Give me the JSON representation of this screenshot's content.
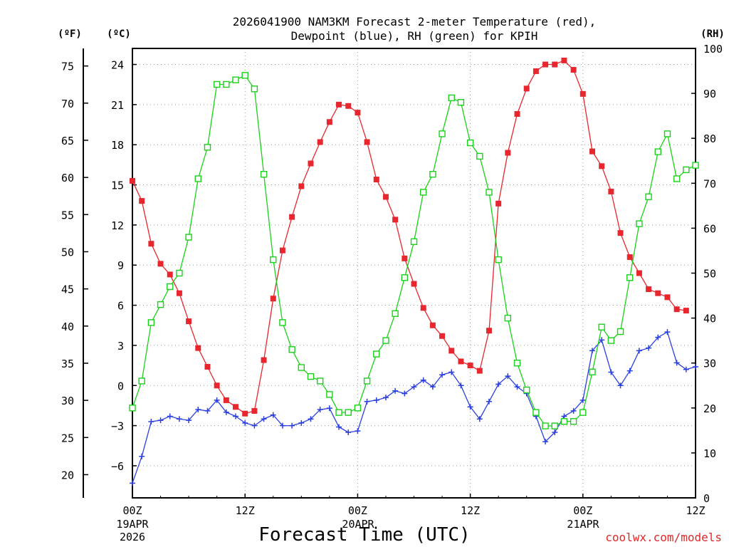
{
  "title": {
    "line1": "2026041900 NAM3KM Forecast 2-meter Temperature (red),",
    "line2": "Dewpoint (blue), RH (green) for KPIH"
  },
  "units": {
    "fahrenheit": "(ºF)",
    "celsius": "(ºC)",
    "rh": "(RH)"
  },
  "x_ticks": [
    "00Z",
    "12Z",
    "00Z",
    "12Z",
    "00Z",
    "12Z"
  ],
  "x_dates": [
    {
      "day": "19APR",
      "year": "2026"
    },
    {
      "day": "20APR",
      "year": ""
    },
    {
      "day": "21APR",
      "year": ""
    }
  ],
  "x_title": "Forecast Time (UTC)",
  "credit": "coolwx.com/models",
  "colors": {
    "temperature": "#e8262e",
    "dewpoint": "#2a3fe0",
    "rh": "#19d219",
    "credit": "#e0282a"
  },
  "chart_data": {
    "type": "line",
    "x_unit": "forecast hour (UTC, 0 = 00Z 19APR)",
    "xlim": [
      0,
      60
    ],
    "celsius_ticks": [
      "24",
      "21",
      "18",
      "15",
      "12",
      "9",
      "6",
      "3",
      "0",
      "−3",
      "−6"
    ],
    "fahrenheit_ticks": [
      "75",
      "70",
      "65",
      "60",
      "55",
      "50",
      "45",
      "40",
      "35",
      "30",
      "25",
      "20"
    ],
    "rh_ticks": [
      "100",
      "90",
      "80",
      "70",
      "60",
      "50",
      "40",
      "30",
      "20",
      "10",
      "0"
    ],
    "ylim_celsius": [
      -8.4,
      25.2
    ],
    "ylim_rh": [
      0,
      100
    ],
    "series": [
      {
        "name": "2-meter Temperature",
        "axis": "celsius",
        "color": "red",
        "marker": "filled-square",
        "points": [
          [
            0,
            15.3
          ],
          [
            1,
            13.8
          ],
          [
            2,
            10.6
          ],
          [
            3,
            9.1
          ],
          [
            4,
            8.3
          ],
          [
            5,
            6.9
          ],
          [
            6,
            4.8
          ],
          [
            7,
            2.8
          ],
          [
            8,
            1.4
          ],
          [
            9,
            0.0
          ],
          [
            10,
            -1.1
          ],
          [
            11,
            -1.6
          ],
          [
            12,
            -2.1
          ],
          [
            13,
            -1.9
          ],
          [
            14,
            1.9
          ],
          [
            15,
            6.5
          ],
          [
            16,
            10.1
          ],
          [
            17,
            12.6
          ],
          [
            18,
            14.9
          ],
          [
            19,
            16.6
          ],
          [
            20,
            18.2
          ],
          [
            21,
            19.7
          ],
          [
            22,
            21.0
          ],
          [
            23,
            20.9
          ],
          [
            24,
            20.4
          ],
          [
            25,
            18.2
          ],
          [
            26,
            15.4
          ],
          [
            27,
            14.1
          ],
          [
            28,
            12.4
          ],
          [
            29,
            9.5
          ],
          [
            30,
            7.6
          ],
          [
            31,
            5.8
          ],
          [
            32,
            4.5
          ],
          [
            33,
            3.7
          ],
          [
            34,
            2.6
          ],
          [
            35,
            1.8
          ],
          [
            36,
            1.5
          ],
          [
            37,
            1.1
          ],
          [
            38,
            4.1
          ],
          [
            39,
            13.6
          ],
          [
            40,
            17.4
          ],
          [
            41,
            20.3
          ],
          [
            42,
            22.2
          ],
          [
            43,
            23.5
          ],
          [
            44,
            24.0
          ],
          [
            45,
            24.0
          ],
          [
            46,
            24.3
          ],
          [
            47,
            23.6
          ],
          [
            48,
            21.8
          ],
          [
            49,
            17.5
          ],
          [
            50,
            16.4
          ],
          [
            51,
            14.5
          ],
          [
            52,
            11.4
          ],
          [
            53,
            9.6
          ],
          [
            54,
            8.4
          ],
          [
            55,
            7.2
          ],
          [
            56,
            6.9
          ],
          [
            57,
            6.6
          ],
          [
            58,
            5.7
          ],
          [
            59,
            5.6
          ]
        ]
      },
      {
        "name": "Dewpoint",
        "axis": "celsius",
        "color": "blue",
        "marker": "plus",
        "points": [
          [
            0,
            -7.3
          ],
          [
            1,
            -5.3
          ],
          [
            2,
            -2.7
          ],
          [
            3,
            -2.6
          ],
          [
            4,
            -2.3
          ],
          [
            5,
            -2.5
          ],
          [
            6,
            -2.6
          ],
          [
            7,
            -1.8
          ],
          [
            8,
            -1.9
          ],
          [
            9,
            -1.1
          ],
          [
            10,
            -2.0
          ],
          [
            11,
            -2.3
          ],
          [
            12,
            -2.8
          ],
          [
            13,
            -3.0
          ],
          [
            14,
            -2.5
          ],
          [
            15,
            -2.2
          ],
          [
            16,
            -3.0
          ],
          [
            17,
            -3.0
          ],
          [
            18,
            -2.8
          ],
          [
            19,
            -2.5
          ],
          [
            20,
            -1.8
          ],
          [
            21,
            -1.7
          ],
          [
            22,
            -3.1
          ],
          [
            23,
            -3.5
          ],
          [
            24,
            -3.4
          ],
          [
            25,
            -1.2
          ],
          [
            26,
            -1.1
          ],
          [
            27,
            -0.9
          ],
          [
            28,
            -0.4
          ],
          [
            29,
            -0.6
          ],
          [
            30,
            -0.1
          ],
          [
            31,
            0.4
          ],
          [
            32,
            -0.1
          ],
          [
            33,
            0.8
          ],
          [
            34,
            1.0
          ],
          [
            35,
            0.0
          ],
          [
            36,
            -1.6
          ],
          [
            37,
            -2.5
          ],
          [
            38,
            -1.2
          ],
          [
            39,
            0.1
          ],
          [
            40,
            0.7
          ],
          [
            41,
            -0.1
          ],
          [
            42,
            -0.6
          ],
          [
            43,
            -2.3
          ],
          [
            44,
            -4.2
          ],
          [
            45,
            -3.5
          ],
          [
            46,
            -2.3
          ],
          [
            47,
            -1.9
          ],
          [
            48,
            -1.1
          ],
          [
            49,
            2.6
          ],
          [
            50,
            3.4
          ],
          [
            51,
            1.0
          ],
          [
            52,
            0.0
          ],
          [
            53,
            1.1
          ],
          [
            54,
            2.6
          ],
          [
            55,
            2.8
          ],
          [
            56,
            3.6
          ],
          [
            57,
            4.0
          ],
          [
            58,
            1.7
          ],
          [
            59,
            1.2
          ],
          [
            60,
            1.4
          ]
        ]
      },
      {
        "name": "RH",
        "axis": "rh",
        "color": "green",
        "marker": "open-square",
        "points": [
          [
            0,
            20
          ],
          [
            1,
            26
          ],
          [
            2,
            39
          ],
          [
            3,
            43
          ],
          [
            4,
            47
          ],
          [
            5,
            50
          ],
          [
            6,
            58
          ],
          [
            7,
            71
          ],
          [
            8,
            78
          ],
          [
            9,
            92
          ],
          [
            10,
            92
          ],
          [
            11,
            93
          ],
          [
            12,
            94
          ],
          [
            13,
            91
          ],
          [
            14,
            72
          ],
          [
            15,
            53
          ],
          [
            16,
            39
          ],
          [
            17,
            33
          ],
          [
            18,
            29
          ],
          [
            19,
            27
          ],
          [
            20,
            26
          ],
          [
            21,
            23
          ],
          [
            22,
            19
          ],
          [
            23,
            19
          ],
          [
            24,
            20
          ],
          [
            25,
            26
          ],
          [
            26,
            32
          ],
          [
            27,
            35
          ],
          [
            28,
            41
          ],
          [
            29,
            49
          ],
          [
            30,
            57
          ],
          [
            31,
            68
          ],
          [
            32,
            72
          ],
          [
            33,
            81
          ],
          [
            34,
            89
          ],
          [
            35,
            88
          ],
          [
            36,
            79
          ],
          [
            37,
            76
          ],
          [
            38,
            68
          ],
          [
            39,
            53
          ],
          [
            40,
            40
          ],
          [
            41,
            30
          ],
          [
            42,
            24
          ],
          [
            43,
            19
          ],
          [
            44,
            16
          ],
          [
            45,
            16
          ],
          [
            46,
            17
          ],
          [
            47,
            17
          ],
          [
            48,
            19
          ],
          [
            49,
            28
          ],
          [
            50,
            38
          ],
          [
            51,
            35
          ],
          [
            52,
            37
          ],
          [
            53,
            49
          ],
          [
            54,
            61
          ],
          [
            55,
            67
          ],
          [
            56,
            77
          ],
          [
            57,
            81
          ],
          [
            58,
            71
          ],
          [
            59,
            73
          ],
          [
            60,
            74
          ]
        ]
      }
    ]
  }
}
